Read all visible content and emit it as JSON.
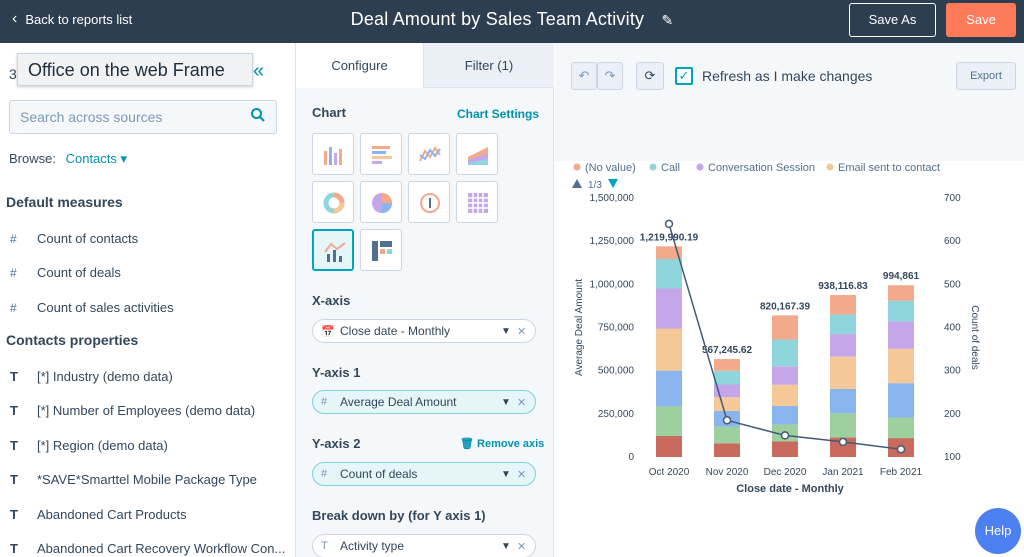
{
  "topbar": {
    "back_label": "Back to reports list",
    "title": "Deal Amount by Sales Team Activity",
    "save_as_label": "Save As",
    "save_label": "Save"
  },
  "left": {
    "tooltip": "Office on the web Frame",
    "count_prefix": "3",
    "search_placeholder": "Search across sources",
    "browse_label": "Browse:",
    "browse_value": "Contacts",
    "default_measures_heading": "Default measures",
    "measures": [
      {
        "type": "#",
        "label": "Count of contacts"
      },
      {
        "type": "#",
        "label": "Count of deals"
      },
      {
        "type": "#",
        "label": "Count of sales activities"
      }
    ],
    "properties_heading": "Contacts properties",
    "properties": [
      {
        "type": "T",
        "label": "[*] Industry (demo data)"
      },
      {
        "type": "T",
        "label": "[*] Number of Employees (demo data)"
      },
      {
        "type": "T",
        "label": "[*] Region (demo data)"
      },
      {
        "type": "T",
        "label": "*SAVE*Smarttel Mobile Package Type"
      },
      {
        "type": "T",
        "label": "Abandoned Cart Products"
      },
      {
        "type": "T",
        "label": "Abandoned Cart Recovery Workflow Con..."
      }
    ]
  },
  "mid": {
    "tabs": [
      "Configure",
      "Filter (1)"
    ],
    "chart_label": "Chart",
    "chart_settings_link": "Chart Settings",
    "xaxis_label": "X-axis",
    "xaxis_value": "Close date - Monthly",
    "yaxis1_label": "Y-axis 1",
    "yaxis1_value": "Average Deal Amount",
    "yaxis2_label": "Y-axis 2",
    "remove_axis_link": "Remove axis",
    "yaxis2_value": "Count of deals",
    "breakdown_label": "Break down by (for Y axis 1)",
    "breakdown_value": "Activity type"
  },
  "right": {
    "refresh_label": "Refresh as I make changes",
    "export_label": "Export",
    "help_label": "Help"
  },
  "chart_data": {
    "type": "bar",
    "categories": [
      "Oct 2020",
      "Nov 2020",
      "Dec 2020",
      "Jan 2021",
      "Feb 2021"
    ],
    "xlabel": "Close date - Monthly",
    "ylabel": "Average Deal Amount",
    "y2label": "Count of deals",
    "ylim": [
      0,
      1500000
    ],
    "y2lim": [
      100,
      700
    ],
    "yticks": [
      "0",
      "250,000",
      "500,000",
      "750,000",
      "1,000,000",
      "1,250,000",
      "1,500,000"
    ],
    "y2ticks": [
      "100",
      "200",
      "300",
      "400",
      "500",
      "600",
      "700"
    ],
    "legend": [
      "(No value)",
      "Call",
      "Conversation Session",
      "Email sent to contact"
    ],
    "legend_pager": "1/3",
    "totals": [
      1219990.19,
      567245.62,
      820167.39,
      938116.83,
      994861
    ],
    "total_labels": [
      "1,219,990.19",
      "567,245.62",
      "820,167.39",
      "938,116.83",
      "994,861"
    ],
    "colors": [
      "#c96a5e",
      "#9ecf9e",
      "#8ab4ee",
      "#f4c897",
      "#c5a6e8",
      "#8fd6dc",
      "#f3a98c"
    ],
    "stack_fractions": [
      [
        0.1,
        0.14,
        0.17,
        0.2,
        0.19,
        0.14,
        0.06
      ],
      [
        0.14,
        0.17,
        0.16,
        0.14,
        0.13,
        0.14,
        0.12
      ],
      [
        0.11,
        0.12,
        0.13,
        0.15,
        0.13,
        0.19,
        0.17
      ],
      [
        0.12,
        0.15,
        0.15,
        0.2,
        0.14,
        0.12,
        0.12
      ],
      [
        0.11,
        0.12,
        0.2,
        0.2,
        0.16,
        0.12,
        0.09
      ]
    ],
    "line_series": {
      "name": "Count of deals",
      "values": [
        640,
        185,
        150,
        135,
        118
      ]
    }
  }
}
